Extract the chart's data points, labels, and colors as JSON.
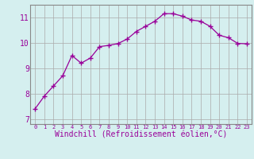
{
  "x": [
    0,
    1,
    2,
    3,
    4,
    5,
    6,
    7,
    8,
    9,
    10,
    11,
    12,
    13,
    14,
    15,
    16,
    17,
    18,
    19,
    20,
    21,
    22,
    23
  ],
  "y": [
    7.4,
    7.9,
    8.3,
    8.7,
    9.5,
    9.2,
    9.4,
    9.85,
    9.9,
    9.97,
    10.15,
    10.45,
    10.65,
    10.85,
    11.15,
    11.15,
    11.05,
    10.9,
    10.85,
    10.65,
    10.3,
    10.2,
    9.98,
    9.96
  ],
  "line_color": "#990099",
  "marker": "+",
  "marker_size": 4,
  "marker_lw": 1.0,
  "xlabel": "Windchill (Refroidissement éolien,°C)",
  "xlabel_fontsize": 7,
  "ylabel_ticks": [
    7,
    8,
    9,
    10,
    11
  ],
  "xtick_labels": [
    "0",
    "1",
    "2",
    "3",
    "4",
    "5",
    "6",
    "7",
    "8",
    "9",
    "10",
    "11",
    "12",
    "13",
    "14",
    "15",
    "16",
    "17",
    "18",
    "19",
    "20",
    "21",
    "22",
    "23"
  ],
  "ylim": [
    6.8,
    11.5
  ],
  "xlim": [
    -0.5,
    23.5
  ],
  "bg_color": "#d5efef",
  "grid_color": "#aaaaaa",
  "spine_color": "#888888",
  "tick_color": "#990099",
  "label_color": "#990099",
  "ytick_fontsize": 7,
  "xtick_fontsize": 5
}
